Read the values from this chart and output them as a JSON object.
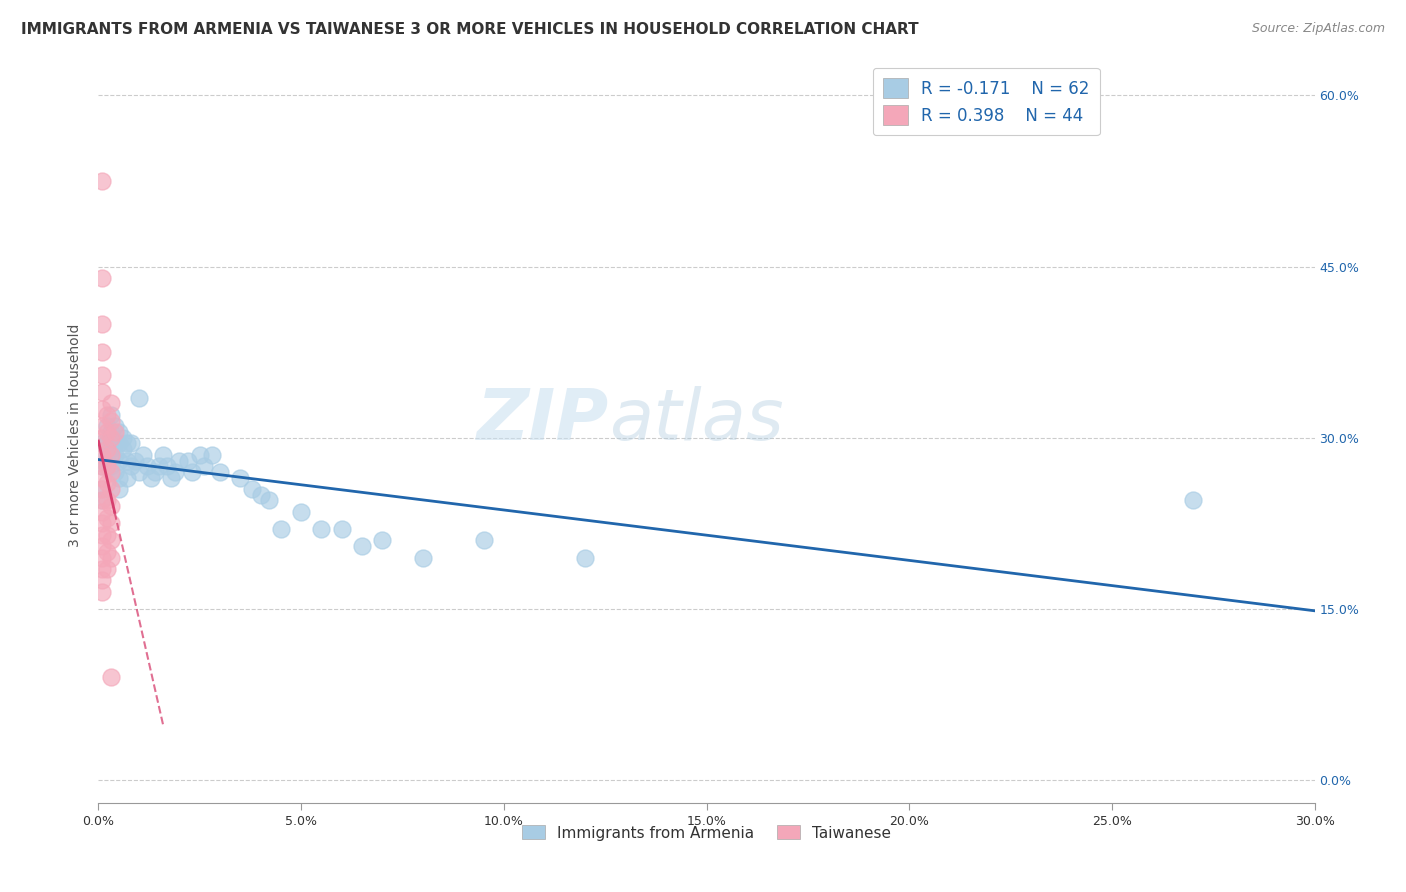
{
  "title": "IMMIGRANTS FROM ARMENIA VS TAIWANESE 3 OR MORE VEHICLES IN HOUSEHOLD CORRELATION CHART",
  "source": "Source: ZipAtlas.com",
  "xlabel_label": "Immigrants from Armenia",
  "ylabel_label": "3 or more Vehicles in Household",
  "xlim": [
    0,
    0.3
  ],
  "ylim": [
    -0.02,
    0.625
  ],
  "legend_r1": "R = -0.171",
  "legend_n1": "N = 62",
  "legend_r2": "R = 0.398",
  "legend_n2": "N = 44",
  "watermark_zip": "ZIP",
  "watermark_atlas": "atlas",
  "blue_color": "#a8cce4",
  "pink_color": "#f4a7b9",
  "blue_line_color": "#2166ac",
  "pink_line_color": "#d63f6e",
  "grid_color": "#cccccc",
  "blue_scatter": [
    [
      0.001,
      0.295
    ],
    [
      0.001,
      0.275
    ],
    [
      0.001,
      0.255
    ],
    [
      0.002,
      0.31
    ],
    [
      0.002,
      0.295
    ],
    [
      0.002,
      0.285
    ],
    [
      0.002,
      0.275
    ],
    [
      0.003,
      0.32
    ],
    [
      0.003,
      0.305
    ],
    [
      0.003,
      0.295
    ],
    [
      0.003,
      0.285
    ],
    [
      0.003,
      0.275
    ],
    [
      0.004,
      0.31
    ],
    [
      0.004,
      0.295
    ],
    [
      0.004,
      0.285
    ],
    [
      0.004,
      0.27
    ],
    [
      0.005,
      0.305
    ],
    [
      0.005,
      0.295
    ],
    [
      0.005,
      0.28
    ],
    [
      0.005,
      0.265
    ],
    [
      0.005,
      0.255
    ],
    [
      0.006,
      0.3
    ],
    [
      0.006,
      0.29
    ],
    [
      0.007,
      0.295
    ],
    [
      0.007,
      0.28
    ],
    [
      0.007,
      0.265
    ],
    [
      0.008,
      0.295
    ],
    [
      0.008,
      0.275
    ],
    [
      0.009,
      0.28
    ],
    [
      0.01,
      0.335
    ],
    [
      0.01,
      0.27
    ],
    [
      0.011,
      0.285
    ],
    [
      0.012,
      0.275
    ],
    [
      0.013,
      0.265
    ],
    [
      0.014,
      0.27
    ],
    [
      0.015,
      0.275
    ],
    [
      0.016,
      0.285
    ],
    [
      0.017,
      0.275
    ],
    [
      0.018,
      0.265
    ],
    [
      0.019,
      0.27
    ],
    [
      0.02,
      0.28
    ],
    [
      0.022,
      0.28
    ],
    [
      0.023,
      0.27
    ],
    [
      0.025,
      0.285
    ],
    [
      0.026,
      0.275
    ],
    [
      0.028,
      0.285
    ],
    [
      0.03,
      0.27
    ],
    [
      0.035,
      0.265
    ],
    [
      0.038,
      0.255
    ],
    [
      0.04,
      0.25
    ],
    [
      0.042,
      0.245
    ],
    [
      0.045,
      0.22
    ],
    [
      0.05,
      0.235
    ],
    [
      0.055,
      0.22
    ],
    [
      0.06,
      0.22
    ],
    [
      0.065,
      0.205
    ],
    [
      0.07,
      0.21
    ],
    [
      0.08,
      0.195
    ],
    [
      0.095,
      0.21
    ],
    [
      0.12,
      0.195
    ],
    [
      0.001,
      0.245
    ],
    [
      0.27,
      0.245
    ]
  ],
  "pink_scatter": [
    [
      0.001,
      0.525
    ],
    [
      0.001,
      0.44
    ],
    [
      0.001,
      0.4
    ],
    [
      0.001,
      0.375
    ],
    [
      0.001,
      0.355
    ],
    [
      0.001,
      0.34
    ],
    [
      0.001,
      0.325
    ],
    [
      0.001,
      0.31
    ],
    [
      0.001,
      0.3
    ],
    [
      0.001,
      0.285
    ],
    [
      0.001,
      0.275
    ],
    [
      0.001,
      0.265
    ],
    [
      0.001,
      0.255
    ],
    [
      0.001,
      0.245
    ],
    [
      0.001,
      0.235
    ],
    [
      0.001,
      0.225
    ],
    [
      0.001,
      0.215
    ],
    [
      0.001,
      0.205
    ],
    [
      0.001,
      0.195
    ],
    [
      0.001,
      0.185
    ],
    [
      0.001,
      0.175
    ],
    [
      0.001,
      0.165
    ],
    [
      0.002,
      0.32
    ],
    [
      0.002,
      0.305
    ],
    [
      0.002,
      0.29
    ],
    [
      0.002,
      0.275
    ],
    [
      0.002,
      0.26
    ],
    [
      0.002,
      0.245
    ],
    [
      0.002,
      0.23
    ],
    [
      0.002,
      0.215
    ],
    [
      0.002,
      0.2
    ],
    [
      0.002,
      0.185
    ],
    [
      0.003,
      0.33
    ],
    [
      0.003,
      0.315
    ],
    [
      0.003,
      0.3
    ],
    [
      0.003,
      0.285
    ],
    [
      0.003,
      0.27
    ],
    [
      0.003,
      0.255
    ],
    [
      0.003,
      0.24
    ],
    [
      0.003,
      0.225
    ],
    [
      0.003,
      0.21
    ],
    [
      0.003,
      0.195
    ],
    [
      0.003,
      0.09
    ],
    [
      0.004,
      0.305
    ]
  ],
  "x_tick_vals": [
    0.0,
    0.05,
    0.1,
    0.15,
    0.2,
    0.25,
    0.3
  ],
  "x_tick_labels": [
    "0.0%",
    "5.0%",
    "10.0%",
    "15.0%",
    "20.0%",
    "25.0%",
    "30.0%"
  ],
  "y_tick_vals": [
    0.0,
    0.15,
    0.3,
    0.45,
    0.6
  ],
  "y_tick_labels": [
    "0.0%",
    "15.0%",
    "30.0%",
    "45.0%",
    "60.0%"
  ],
  "title_fontsize": 11,
  "axis_label_fontsize": 10,
  "tick_fontsize": 9,
  "legend_fontsize": 11
}
